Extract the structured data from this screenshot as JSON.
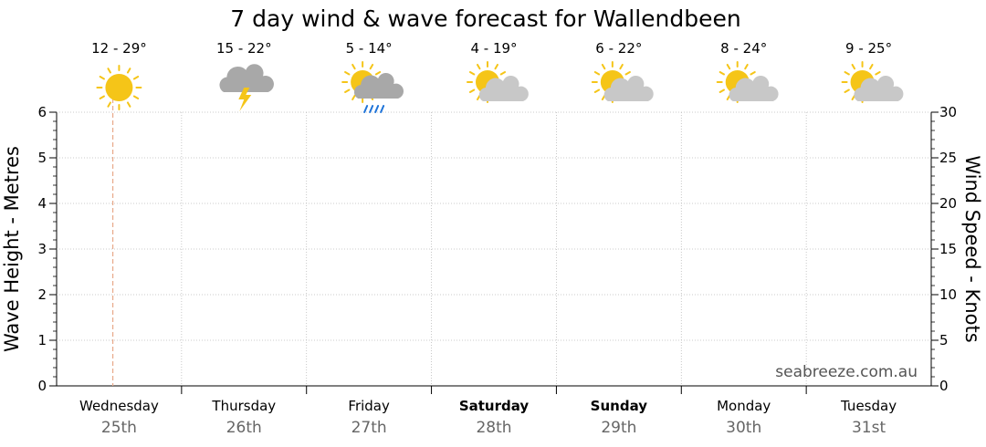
{
  "chart_data": {
    "type": "line",
    "title": "7 day wind & wave forecast for Wallendbeen",
    "ylabel_left": "Wave Height - Metres",
    "ylabel_right": "Wind Speed - Knots",
    "ylim_left": [
      0,
      6
    ],
    "ylim_right": [
      0,
      30
    ],
    "yticks_left": [
      "0",
      "1",
      "2",
      "3",
      "4",
      "5",
      "6"
    ],
    "yticks_right": [
      "0",
      "5",
      "10",
      "15",
      "20",
      "25",
      "30"
    ],
    "grid": true,
    "series": [],
    "days": [
      {
        "day": "Wednesday",
        "date": "25th",
        "temp": "12 - 29°",
        "icon": "sunny-icon",
        "bold": false
      },
      {
        "day": "Thursday",
        "date": "26th",
        "temp": "15 - 22°",
        "icon": "storm-icon",
        "bold": false
      },
      {
        "day": "Friday",
        "date": "27th",
        "temp": "5 - 14°",
        "icon": "sun-cloud-rain-icon",
        "bold": false
      },
      {
        "day": "Saturday",
        "date": "28th",
        "temp": "4 - 19°",
        "icon": "partly-cloudy-icon",
        "bold": true
      },
      {
        "day": "Sunday",
        "date": "29th",
        "temp": "6 - 22°",
        "icon": "partly-cloudy-icon",
        "bold": true
      },
      {
        "day": "Monday",
        "date": "30th",
        "temp": "8 - 24°",
        "icon": "partly-cloudy-icon",
        "bold": false
      },
      {
        "day": "Tuesday",
        "date": "31st",
        "temp": "9 - 25°",
        "icon": "partly-cloudy-icon",
        "bold": false
      }
    ],
    "current_marker_day_index": 0,
    "watermark": "seabreeze.com.au"
  },
  "colors": {
    "sun": "#F5C518",
    "cloud": "#C8C8C8",
    "cloud_dark": "#A8A8A8",
    "rain": "#1E73D8",
    "bolt": "#F5C518",
    "marker": "#E8A98A",
    "grid": "#BBBBBB"
  }
}
